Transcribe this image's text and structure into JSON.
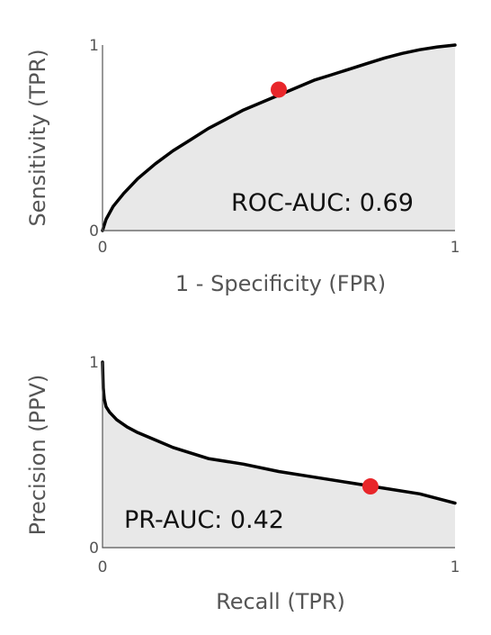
{
  "chart_data": [
    {
      "type": "area",
      "xlabel": "1 - Specificity (FPR)",
      "ylabel": "Sensitivity (TPR)",
      "xlim": [
        0,
        1
      ],
      "ylim": [
        0,
        1
      ],
      "x_ticks": [
        "0",
        "1"
      ],
      "y_ticks": [
        "0",
        "1"
      ],
      "annotation": "ROC-AUC: 0.69",
      "curve": {
        "x": [
          0,
          0.01,
          0.03,
          0.06,
          0.1,
          0.15,
          0.2,
          0.25,
          0.3,
          0.35,
          0.4,
          0.45,
          0.5,
          0.55,
          0.6,
          0.65,
          0.7,
          0.75,
          0.8,
          0.85,
          0.9,
          0.95,
          1.0
        ],
        "y": [
          0,
          0.06,
          0.13,
          0.2,
          0.28,
          0.36,
          0.43,
          0.49,
          0.55,
          0.6,
          0.65,
          0.69,
          0.73,
          0.77,
          0.81,
          0.84,
          0.87,
          0.9,
          0.93,
          0.955,
          0.975,
          0.99,
          1.0
        ]
      },
      "marker": {
        "x": 0.5,
        "y": 0.76,
        "color": "#e8262a"
      },
      "fill_color": "#e8e8e8",
      "grid": false
    },
    {
      "type": "area",
      "xlabel": "Recall (TPR)",
      "ylabel": "Precision (PPV)",
      "xlim": [
        0,
        1
      ],
      "ylim": [
        0,
        1
      ],
      "x_ticks": [
        "0",
        "1"
      ],
      "y_ticks": [
        "0",
        "1"
      ],
      "annotation": "PR-AUC: 0.42",
      "curve": {
        "x": [
          0,
          0.002,
          0.005,
          0.01,
          0.02,
          0.04,
          0.07,
          0.1,
          0.15,
          0.2,
          0.3,
          0.4,
          0.5,
          0.6,
          0.7,
          0.8,
          0.9,
          1.0
        ],
        "y": [
          1.0,
          0.86,
          0.8,
          0.76,
          0.73,
          0.69,
          0.65,
          0.62,
          0.58,
          0.54,
          0.48,
          0.45,
          0.41,
          0.38,
          0.35,
          0.32,
          0.29,
          0.24
        ]
      },
      "marker": {
        "x": 0.76,
        "y": 0.33,
        "color": "#e8262a"
      },
      "fill_color": "#e8e8e8",
      "grid": false
    }
  ]
}
